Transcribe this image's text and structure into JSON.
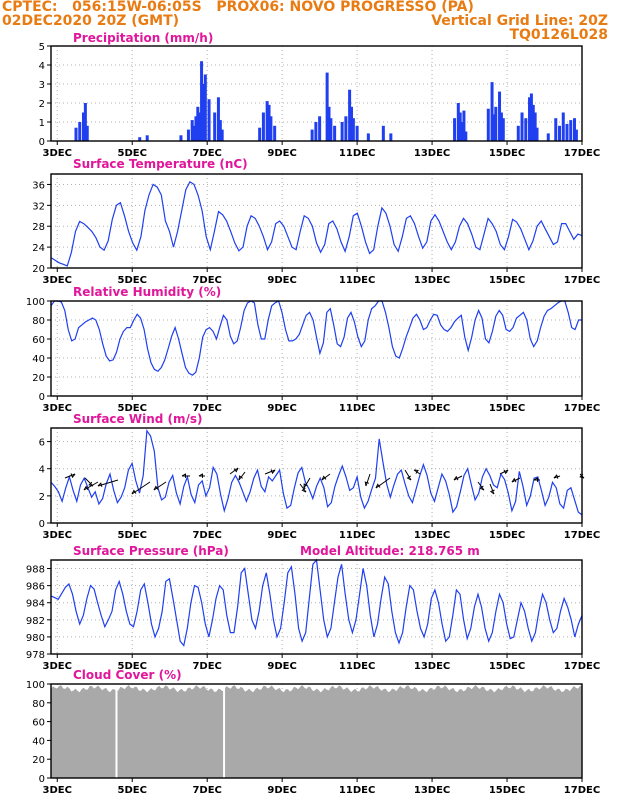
{
  "header": {
    "line1": "CPTEC:   056:15W-06:05S   PROX06: NOVO PROGRESSO (PA)",
    "line2_left": "02DEC2020 20Z (GMT)",
    "line2_right": "Vertical Grid Line: 20Z",
    "line3_right": "TQ0126L028"
  },
  "colors": {
    "header": "#e87b12",
    "title": "#e0169b",
    "series": "#1f3ff0",
    "cloud": "#a9a9a9",
    "wind_arrow": "#000000"
  },
  "x_labels": [
    "3DEC",
    "5DEC",
    "7DEC",
    "9DEC",
    "11DEC",
    "13DEC",
    "15DEC",
    "17DEC"
  ],
  "chart_data": [
    {
      "type": "bar",
      "title": "Precipitation (mm/h)",
      "ylim": [
        0,
        5
      ],
      "yticks": [
        0,
        1,
        2,
        3,
        4,
        5
      ],
      "x_range_days": [
        2.833,
        17.0
      ],
      "values_mm_h": [
        [
          3.5,
          0.7
        ],
        [
          3.6,
          1.0
        ],
        [
          3.7,
          1.5
        ],
        [
          3.75,
          2.0
        ],
        [
          3.8,
          0.8
        ],
        [
          5.2,
          0.2
        ],
        [
          5.4,
          0.3
        ],
        [
          6.3,
          0.3
        ],
        [
          6.5,
          0.6
        ],
        [
          6.6,
          1.1
        ],
        [
          6.65,
          0.8
        ],
        [
          6.7,
          1.3
        ],
        [
          6.75,
          1.8
        ],
        [
          6.8,
          1.5
        ],
        [
          6.85,
          4.2
        ],
        [
          6.9,
          3.0
        ],
        [
          6.95,
          3.5
        ],
        [
          7.05,
          2.2
        ],
        [
          7.2,
          1.5
        ],
        [
          7.3,
          2.3
        ],
        [
          7.35,
          1.1
        ],
        [
          7.4,
          0.6
        ],
        [
          8.4,
          0.7
        ],
        [
          8.5,
          1.5
        ],
        [
          8.6,
          2.1
        ],
        [
          8.65,
          1.9
        ],
        [
          8.7,
          1.3
        ],
        [
          8.8,
          0.8
        ],
        [
          9.8,
          0.6
        ],
        [
          9.9,
          1.0
        ],
        [
          10.0,
          1.3
        ],
        [
          10.2,
          3.6
        ],
        [
          10.25,
          1.8
        ],
        [
          10.3,
          1.2
        ],
        [
          10.4,
          0.8
        ],
        [
          10.6,
          1.0
        ],
        [
          10.7,
          1.3
        ],
        [
          10.8,
          2.7
        ],
        [
          10.85,
          1.8
        ],
        [
          10.9,
          1.2
        ],
        [
          11.0,
          0.8
        ],
        [
          11.3,
          0.4
        ],
        [
          11.7,
          0.8
        ],
        [
          11.9,
          0.4
        ],
        [
          13.6,
          1.2
        ],
        [
          13.7,
          2.0
        ],
        [
          13.75,
          1.5
        ],
        [
          13.8,
          1.0
        ],
        [
          13.85,
          1.6
        ],
        [
          13.9,
          0.5
        ],
        [
          14.5,
          1.7
        ],
        [
          14.6,
          3.1
        ],
        [
          14.65,
          1.4
        ],
        [
          14.7,
          1.8
        ],
        [
          14.8,
          2.6
        ],
        [
          14.85,
          1.5
        ],
        [
          14.9,
          1.2
        ],
        [
          15.3,
          0.8
        ],
        [
          15.4,
          1.5
        ],
        [
          15.5,
          1.2
        ],
        [
          15.6,
          2.3
        ],
        [
          15.65,
          2.5
        ],
        [
          15.7,
          1.9
        ],
        [
          15.75,
          1.5
        ],
        [
          15.8,
          0.7
        ],
        [
          16.1,
          0.4
        ],
        [
          16.3,
          1.2
        ],
        [
          16.4,
          0.8
        ],
        [
          16.5,
          1.5
        ],
        [
          16.6,
          0.9
        ],
        [
          16.7,
          1.1
        ],
        [
          16.8,
          1.2
        ],
        [
          16.85,
          0.6
        ]
      ]
    },
    {
      "type": "line",
      "title": "Surface Temperature (nC)",
      "ylim": [
        20,
        38
      ],
      "yticks": [
        20,
        24,
        28,
        32,
        36
      ],
      "x_range_days": [
        2.833,
        17.0
      ],
      "values": [
        22.0,
        21.5,
        21.0,
        20.7,
        20.4,
        23.0,
        27.0,
        28.9,
        28.5,
        27.8,
        27.0,
        25.8,
        24.0,
        23.4,
        25.2,
        29.3,
        32.0,
        32.5,
        30.0,
        27.0,
        24.8,
        23.4,
        26.0,
        31.0,
        34.0,
        36.0,
        35.5,
        34.0,
        29.0,
        27.0,
        24.0,
        27.0,
        31.0,
        35.0,
        36.5,
        36.0,
        34.0,
        31.0,
        26.0,
        23.5,
        27.0,
        30.8,
        30.2,
        29.0,
        27.0,
        24.8,
        23.3,
        24.0,
        28.0,
        30.0,
        29.5,
        28.0,
        26.0,
        23.5,
        25.0,
        28.5,
        29.0,
        28.0,
        26.0,
        24.0,
        23.5,
        27.0,
        30.0,
        29.5,
        28.0,
        24.8,
        23.0,
        24.5,
        28.5,
        29.0,
        27.5,
        25.0,
        23.2,
        26.0,
        30.0,
        30.5,
        28.0,
        25.0,
        22.8,
        23.5,
        28.0,
        31.5,
        30.5,
        28.0,
        24.5,
        23.2,
        26.0,
        29.5,
        30.0,
        28.5,
        26.0,
        23.8,
        25.0,
        29.0,
        30.2,
        29.0,
        27.0,
        25.0,
        23.5,
        25.0,
        28.0,
        29.5,
        28.5,
        26.5,
        24.0,
        23.5,
        26.5,
        29.5,
        28.5,
        27.0,
        24.5,
        23.5,
        26.0,
        29.3,
        28.8,
        27.5,
        25.5,
        23.5,
        25.2,
        28.0,
        29.0,
        27.5,
        26.0,
        24.5,
        25.0,
        28.5,
        28.5,
        27.0,
        25.5,
        26.5,
        26.2
      ]
    },
    {
      "type": "line",
      "title": "Relative Humidity (%)",
      "ylim": [
        0,
        100
      ],
      "yticks": [
        0,
        20,
        40,
        60,
        80,
        100
      ],
      "x_range_days": [
        2.833,
        17.0
      ],
      "values": [
        95,
        100,
        100,
        99,
        90,
        70,
        58,
        60,
        72,
        75,
        78,
        80,
        82,
        80,
        70,
        55,
        42,
        37,
        38,
        46,
        60,
        68,
        72,
        72,
        80,
        86,
        82,
        70,
        50,
        35,
        28,
        26,
        30,
        38,
        50,
        63,
        72,
        60,
        45,
        30,
        24,
        22,
        25,
        40,
        62,
        70,
        72,
        68,
        60,
        73,
        85,
        80,
        63,
        55,
        58,
        72,
        90,
        98,
        100,
        98,
        75,
        60,
        60,
        80,
        95,
        98,
        100,
        88,
        70,
        58,
        58,
        60,
        65,
        75,
        85,
        88,
        80,
        62,
        45,
        56,
        88,
        92,
        75,
        55,
        52,
        62,
        82,
        88,
        78,
        62,
        52,
        58,
        80,
        92,
        95,
        100,
        100,
        88,
        72,
        52,
        42,
        40,
        50,
        62,
        72,
        82,
        86,
        80,
        70,
        72,
        80,
        86,
        85,
        75,
        70,
        68,
        72,
        78,
        82,
        85,
        62,
        48,
        62,
        80,
        90,
        82,
        60,
        56,
        68,
        84,
        90,
        85,
        70,
        68,
        72,
        82,
        85,
        88,
        80,
        60,
        52,
        58,
        72,
        84,
        90,
        92,
        95,
        98,
        100,
        100,
        88,
        72,
        70,
        80,
        80
      ]
    },
    {
      "type": "line",
      "title": "Surface Wind (m/s)",
      "ylim": [
        0,
        7
      ],
      "yticks": [
        0,
        2,
        4,
        6
      ],
      "x_range_days": [
        2.833,
        17.0
      ],
      "values": [
        3.0,
        2.7,
        2.3,
        1.6,
        2.6,
        3.4,
        2.4,
        1.6,
        2.8,
        3.3,
        2.6,
        1.9,
        2.3,
        1.4,
        1.8,
        2.9,
        3.6,
        2.4,
        1.5,
        1.9,
        2.6,
        3.9,
        4.4,
        3.1,
        2.2,
        3.5,
        6.8,
        6.4,
        5.3,
        2.6,
        1.7,
        1.9,
        3.0,
        3.5,
        2.2,
        1.4,
        2.7,
        3.4,
        2.1,
        1.5,
        2.8,
        3.1,
        2.0,
        2.6,
        4.1,
        3.6,
        2.1,
        0.9,
        1.8,
        3.0,
        3.5,
        3.0,
        2.3,
        1.6,
        2.3,
        3.3,
        3.9,
        2.7,
        2.3,
        3.4,
        3.1,
        3.5,
        3.9,
        2.2,
        1.1,
        1.3,
        2.6,
        3.7,
        4.1,
        3.0,
        2.5,
        1.8,
        2.7,
        3.3,
        2.6,
        1.2,
        1.5,
        2.7,
        3.5,
        4.2,
        3.4,
        2.4,
        2.6,
        3.4,
        1.9,
        1.1,
        1.6,
        2.5,
        3.3,
        6.2,
        4.5,
        2.9,
        1.9,
        2.8,
        3.6,
        3.9,
        2.9,
        2.0,
        1.5,
        2.5,
        3.5,
        4.3,
        3.5,
        2.2,
        1.6,
        2.6,
        3.6,
        3.1,
        2.1,
        0.8,
        1.2,
        2.3,
        3.5,
        4.0,
        2.8,
        1.7,
        2.2,
        3.4,
        4.0,
        3.5,
        2.8,
        2.6,
        3.6,
        3.2,
        2.2,
        0.9,
        1.6,
        3.8,
        2.7,
        1.3,
        2.0,
        3.3,
        3.4,
        2.4,
        1.3,
        1.9,
        3.0,
        2.6,
        1.4,
        1.1,
        2.4,
        2.6,
        1.7,
        0.8,
        0.6
      ]
    },
    {
      "type": "line",
      "title": "Surface Pressure (hPa)",
      "annotation": "Model Altitude: 218.765 m",
      "ylim": [
        978,
        989
      ],
      "yticks": [
        978,
        980,
        982,
        984,
        986,
        988
      ],
      "x_range_days": [
        2.833,
        17.0
      ],
      "values": [
        984.8,
        984.6,
        984.4,
        985.1,
        985.8,
        986.2,
        985.0,
        983.0,
        981.5,
        982.5,
        984.5,
        986.0,
        985.6,
        984.0,
        982.5,
        981.2,
        982.0,
        983.0,
        985.5,
        986.5,
        985.0,
        983.0,
        981.5,
        981.2,
        983.0,
        985.5,
        986.2,
        984.0,
        981.5,
        980.0,
        981.0,
        983.0,
        986.5,
        986.8,
        984.5,
        982.0,
        979.5,
        979.0,
        981.0,
        984.0,
        986.0,
        985.8,
        984.0,
        981.5,
        980.0,
        982.0,
        984.5,
        986.0,
        985.5,
        982.5,
        980.5,
        980.5,
        983.5,
        987.5,
        988.0,
        985.0,
        982.0,
        981.0,
        983.0,
        986.0,
        987.5,
        985.0,
        982.0,
        980.0,
        981.0,
        984.0,
        987.5,
        988.2,
        985.0,
        981.0,
        979.5,
        980.5,
        984.5,
        988.5,
        989.0,
        985.5,
        982.0,
        980.0,
        981.0,
        984.0,
        987.0,
        988.5,
        985.0,
        982.0,
        980.5,
        982.0,
        985.0,
        988.0,
        986.0,
        982.5,
        980.0,
        981.5,
        984.5,
        987.0,
        986.2,
        983.0,
        980.5,
        979.3,
        980.5,
        983.5,
        986.0,
        985.5,
        983.0,
        981.0,
        980.0,
        981.5,
        984.5,
        985.5,
        984.0,
        981.5,
        979.5,
        980.0,
        982.5,
        985.5,
        985.0,
        982.0,
        979.8,
        981.0,
        983.5,
        985.0,
        983.5,
        981.0,
        979.5,
        980.5,
        983.0,
        985.0,
        984.0,
        981.5,
        979.8,
        980.0,
        982.0,
        984.0,
        983.0,
        981.0,
        979.5,
        980.5,
        983.0,
        985.0,
        984.0,
        982.0,
        980.5,
        981.0,
        983.0,
        984.5,
        983.5,
        982.0,
        980.0,
        981.5,
        982.5
      ]
    },
    {
      "type": "area",
      "title": "Cloud Cover (%)",
      "ylim": [
        0,
        100
      ],
      "yticks": [
        0,
        20,
        40,
        60,
        80,
        100
      ],
      "x_range_days": [
        2.833,
        17.0
      ],
      "gaps_days": [
        4.58,
        7.45
      ],
      "values_approx_percent": 95
    }
  ]
}
